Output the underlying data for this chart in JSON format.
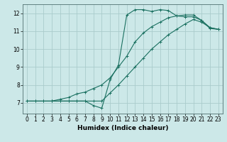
{
  "xlabel": "Humidex (Indice chaleur)",
  "bg_color": "#cce8e8",
  "grid_color": "#aacccc",
  "line_color": "#1a7060",
  "xlim": [
    -0.5,
    23.5
  ],
  "ylim": [
    6.4,
    12.5
  ],
  "xticks": [
    0,
    1,
    2,
    3,
    4,
    5,
    6,
    7,
    8,
    9,
    10,
    11,
    12,
    13,
    14,
    15,
    16,
    17,
    18,
    19,
    20,
    21,
    22,
    23
  ],
  "yticks": [
    7,
    8,
    9,
    10,
    11,
    12
  ],
  "curve1_x": [
    0,
    1,
    2,
    3,
    4,
    5,
    6,
    7,
    8,
    9,
    10,
    11,
    12,
    13,
    14,
    15,
    16,
    17,
    18,
    19,
    20,
    21,
    22,
    23
  ],
  "curve1_y": [
    7.1,
    7.1,
    7.1,
    7.1,
    7.1,
    7.1,
    7.1,
    7.1,
    6.85,
    6.7,
    8.3,
    9.1,
    11.9,
    12.2,
    12.2,
    12.1,
    12.2,
    12.15,
    11.85,
    11.8,
    11.8,
    11.6,
    11.15,
    11.1
  ],
  "curve2_x": [
    0,
    1,
    2,
    3,
    4,
    5,
    6,
    7,
    8,
    9,
    10,
    11,
    12,
    13,
    14,
    15,
    16,
    17,
    18,
    19,
    20,
    21,
    22,
    23
  ],
  "curve2_y": [
    7.1,
    7.1,
    7.1,
    7.1,
    7.2,
    7.3,
    7.5,
    7.6,
    7.8,
    8.0,
    8.4,
    9.0,
    9.6,
    10.4,
    10.9,
    11.25,
    11.5,
    11.75,
    11.85,
    11.9,
    11.9,
    11.6,
    11.2,
    11.1
  ],
  "curve3_x": [
    3,
    4,
    5,
    6,
    7,
    8,
    9,
    10,
    11,
    12,
    13,
    14,
    15,
    16,
    17,
    18,
    19,
    20,
    21,
    22,
    23
  ],
  "curve3_y": [
    7.1,
    7.1,
    7.1,
    7.1,
    7.1,
    7.1,
    7.1,
    7.55,
    8.0,
    8.5,
    9.0,
    9.5,
    10.0,
    10.4,
    10.8,
    11.1,
    11.4,
    11.65,
    11.5,
    11.2,
    11.1
  ]
}
